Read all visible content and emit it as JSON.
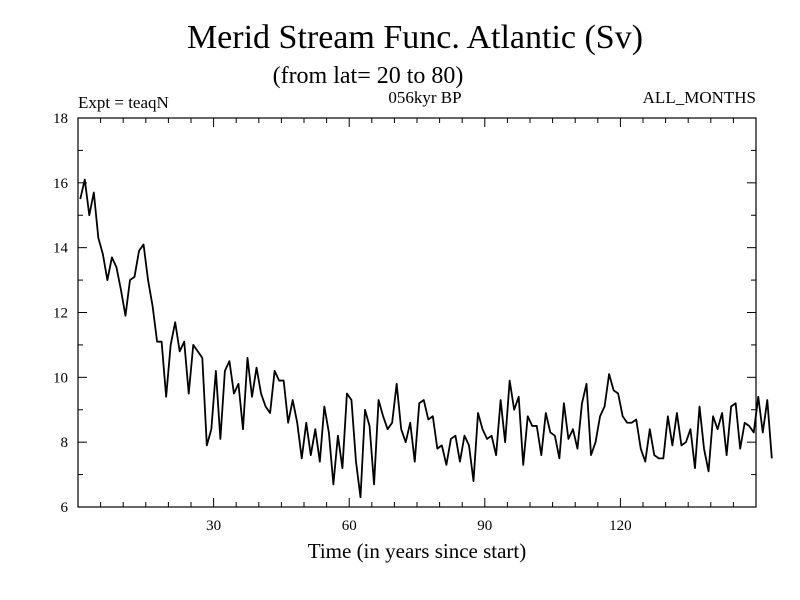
{
  "chart_data": {
    "type": "line",
    "title": "Merid Stream Func. Atlantic (Sv)",
    "subtitle": "(from lat= 20 to 80)",
    "experiment_label": "Expt = teaqN",
    "period_label": "056kyr BP",
    "months_label": "ALL_MONTHS",
    "xlabel": "Time (in years since start)",
    "ylabel": "",
    "xlim": [
      0,
      150
    ],
    "ylim": [
      6,
      18
    ],
    "xticks": [
      30,
      60,
      90,
      120
    ],
    "yticks": [
      6,
      8,
      10,
      12,
      14,
      16,
      18
    ],
    "x_minor_step": 5,
    "y_minor_step": 1,
    "line_color": "#000000",
    "series": [
      {
        "name": "Merid Stream Func.",
        "x_start": 0.5,
        "x_step": 1,
        "values": [
          15.5,
          16.1,
          15.0,
          15.7,
          14.3,
          13.8,
          13.0,
          13.7,
          13.4,
          12.7,
          11.9,
          13.0,
          13.1,
          13.9,
          14.1,
          13.0,
          12.2,
          11.1,
          11.1,
          9.4,
          11.0,
          11.7,
          10.8,
          11.1,
          9.5,
          11.0,
          10.8,
          10.6,
          7.9,
          8.4,
          10.2,
          8.1,
          10.2,
          10.5,
          9.5,
          9.8,
          8.4,
          10.6,
          9.4,
          10.3,
          9.5,
          9.1,
          8.9,
          10.2,
          9.9,
          9.9,
          8.6,
          9.3,
          8.6,
          7.5,
          8.6,
          7.6,
          8.4,
          7.4,
          9.1,
          8.3,
          6.7,
          8.2,
          7.2,
          9.5,
          9.3,
          7.4,
          6.3,
          9.0,
          8.5,
          6.7,
          9.3,
          8.8,
          8.4,
          8.6,
          9.8,
          8.4,
          8.0,
          8.6,
          7.4,
          9.2,
          9.3,
          8.7,
          8.8,
          7.8,
          7.9,
          7.3,
          8.1,
          8.2,
          7.4,
          8.2,
          7.9,
          6.8,
          8.9,
          8.4,
          8.1,
          8.2,
          7.6,
          9.3,
          8.0,
          9.9,
          9.0,
          9.4,
          7.3,
          8.8,
          8.5,
          8.5,
          7.6,
          8.9,
          8.3,
          8.2,
          7.5,
          9.2,
          8.1,
          8.4,
          7.8,
          9.2,
          9.8,
          7.6,
          8.0,
          8.8,
          9.1,
          10.1,
          9.6,
          9.5,
          8.8,
          8.6,
          8.6,
          8.7,
          7.8,
          7.4,
          8.4,
          7.6,
          7.5,
          7.5,
          8.8,
          7.9,
          8.9,
          7.9,
          8.0,
          8.4,
          7.2,
          9.1,
          7.8,
          7.1,
          8.8,
          8.4,
          8.9,
          7.6,
          9.1,
          9.2,
          7.8,
          8.6,
          8.5,
          8.3,
          9.4,
          8.3,
          9.3,
          7.5
        ]
      }
    ]
  }
}
